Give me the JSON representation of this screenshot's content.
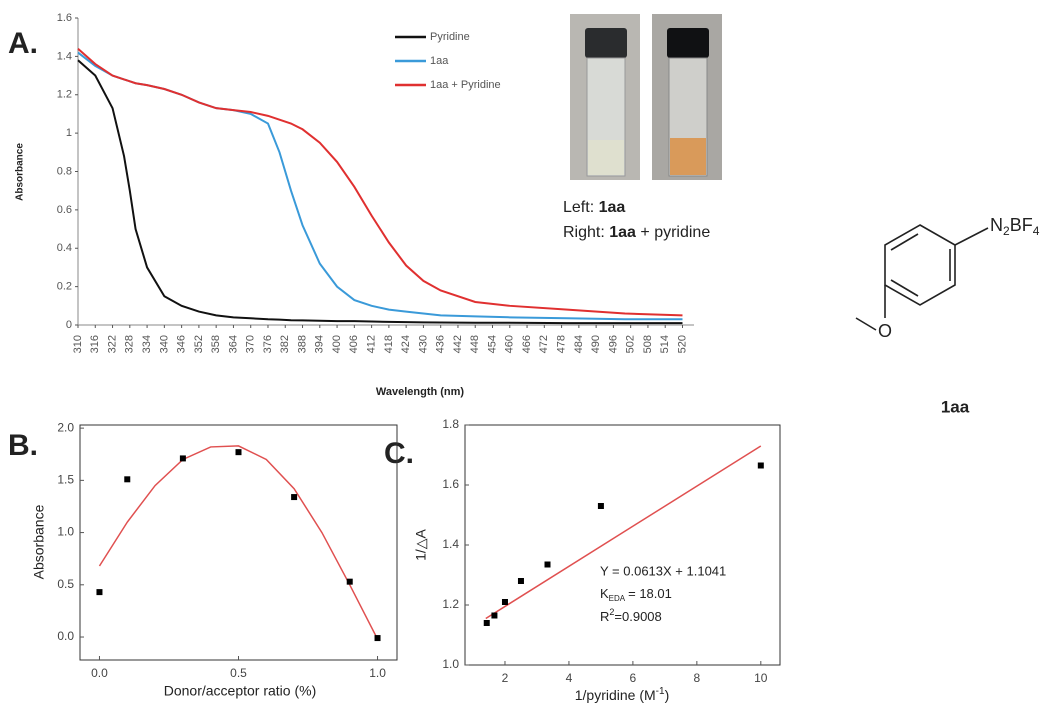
{
  "panel_labels": [
    "A.",
    "B.",
    "C."
  ],
  "photo": {
    "left_label": "Left:",
    "left_compound": "1aa",
    "right_label": "Right:",
    "right_compound": "1aa",
    "right_suffix": "+ pyridine"
  },
  "structure": {
    "n": "N",
    "n_sub": "2",
    "bf": "BF",
    "bf_sub": "4",
    "oxygen": "O",
    "label": "1aa"
  },
  "chart_data": [
    {
      "type": "line",
      "ylabel": "Absorbance",
      "xlabel": "Wavelength (nm)",
      "x": [
        310,
        316,
        322,
        326,
        328,
        330,
        334,
        340,
        346,
        352,
        358,
        364,
        370,
        376,
        380,
        384,
        388,
        394,
        400,
        406,
        412,
        418,
        424,
        430,
        436,
        448,
        460,
        480,
        500,
        520
      ],
      "xlim": [
        310,
        524
      ],
      "ylim": [
        0,
        1.6
      ],
      "xticks": [
        310,
        316,
        322,
        328,
        334,
        340,
        346,
        352,
        358,
        364,
        370,
        376,
        382,
        388,
        394,
        400,
        406,
        412,
        418,
        424,
        430,
        436,
        442,
        448,
        454,
        460,
        466,
        472,
        478,
        484,
        490,
        496,
        502,
        508,
        514,
        520
      ],
      "yticks": [
        0,
        0.2,
        0.4,
        0.6,
        0.8,
        1,
        1.2,
        1.4,
        1.6
      ],
      "legend": "top",
      "series": [
        {
          "name": "Pyridine",
          "color": "#111111",
          "values": [
            1.38,
            1.3,
            1.13,
            0.88,
            0.7,
            0.5,
            0.3,
            0.15,
            0.1,
            0.07,
            0.05,
            0.04,
            0.035,
            0.03,
            0.028,
            0.025,
            0.024,
            0.022,
            0.02,
            0.02,
            0.018,
            0.016,
            0.015,
            0.014,
            0.013,
            0.012,
            0.012,
            0.01,
            0.01,
            0.01
          ]
        },
        {
          "name": "1aa",
          "color": "#3a9ad9",
          "values": [
            1.42,
            1.35,
            1.3,
            1.28,
            1.27,
            1.26,
            1.25,
            1.23,
            1.2,
            1.16,
            1.13,
            1.12,
            1.1,
            1.05,
            0.9,
            0.7,
            0.52,
            0.32,
            0.2,
            0.13,
            0.1,
            0.08,
            0.07,
            0.06,
            0.05,
            0.045,
            0.04,
            0.035,
            0.03,
            0.03
          ]
        },
        {
          "name": "1aa + Pyridine",
          "color": "#e03030",
          "values": [
            1.44,
            1.36,
            1.3,
            1.28,
            1.27,
            1.26,
            1.25,
            1.23,
            1.2,
            1.16,
            1.13,
            1.12,
            1.11,
            1.09,
            1.07,
            1.05,
            1.02,
            0.95,
            0.85,
            0.72,
            0.57,
            0.43,
            0.31,
            0.23,
            0.18,
            0.12,
            0.1,
            0.08,
            0.06,
            0.05
          ]
        }
      ]
    },
    {
      "type": "scatter",
      "ylabel": "Absorbance",
      "xlabel": "Donor/acceptor ratio (%)",
      "x": [
        0,
        0.1,
        0.3,
        0.5,
        0.7,
        0.9,
        1.0
      ],
      "values": [
        0.43,
        1.51,
        1.71,
        1.77,
        1.34,
        0.53,
        -0.01
      ],
      "color": "#000000",
      "fit": {
        "x": [
          0,
          0.1,
          0.2,
          0.3,
          0.4,
          0.5,
          0.6,
          0.7,
          0.8,
          0.9,
          1.0
        ],
        "values": [
          0.68,
          1.1,
          1.45,
          1.7,
          1.82,
          1.83,
          1.7,
          1.42,
          1.0,
          0.5,
          -0.02
        ],
        "color": "#e05050"
      },
      "xlim": [
        -0.07,
        1.07
      ],
      "ylim": [
        -0.22,
        2.03
      ],
      "xticks": [
        {
          "value": 0,
          "label": "0.0"
        },
        {
          "value": 0.5,
          "label": "0.5"
        },
        {
          "value": 1,
          "label": "1.0"
        }
      ],
      "yticks": [
        {
          "value": 0,
          "label": "0.0"
        },
        {
          "value": 0.5,
          "label": "0.5"
        },
        {
          "value": 1,
          "label": "1.0"
        },
        {
          "value": 1.5,
          "label": "1.5"
        },
        {
          "value": 2,
          "label": "2.0"
        }
      ]
    },
    {
      "type": "scatter",
      "ylabel": "1/△A",
      "xlabel": "1/pyridine (M",
      "xlabel_sup": "-1",
      "xlabel_end": ")",
      "x": [
        1.43,
        1.67,
        2,
        2.5,
        3.33,
        5,
        10
      ],
      "values": [
        1.14,
        1.165,
        1.21,
        1.28,
        1.335,
        1.53,
        1.665
      ],
      "color": "#000000",
      "fit": {
        "x": [
          1.4,
          10
        ],
        "values": [
          1.155,
          1.73
        ],
        "color": "#e05050"
      },
      "xlim": [
        0.75,
        10.6
      ],
      "ylim": [
        1.0,
        1.8
      ],
      "xticks": [
        2,
        4,
        6,
        8,
        10
      ],
      "yticks": [
        {
          "value": 1.0,
          "label": "1.0"
        },
        {
          "value": 1.2,
          "label": "1.2"
        },
        {
          "value": 1.4,
          "label": "1.4"
        },
        {
          "value": 1.6,
          "label": "1.6"
        },
        {
          "value": 1.8,
          "label": "1.8"
        }
      ],
      "annotations": {
        "equation": "Y = 0.0613X + 1.1041",
        "k_symbol": "K",
        "k_subscript": "EDA",
        "k_value": "= 18.01",
        "r_symbol": "R",
        "r_superscript": "2",
        "r_value": "=0.9008"
      }
    }
  ]
}
